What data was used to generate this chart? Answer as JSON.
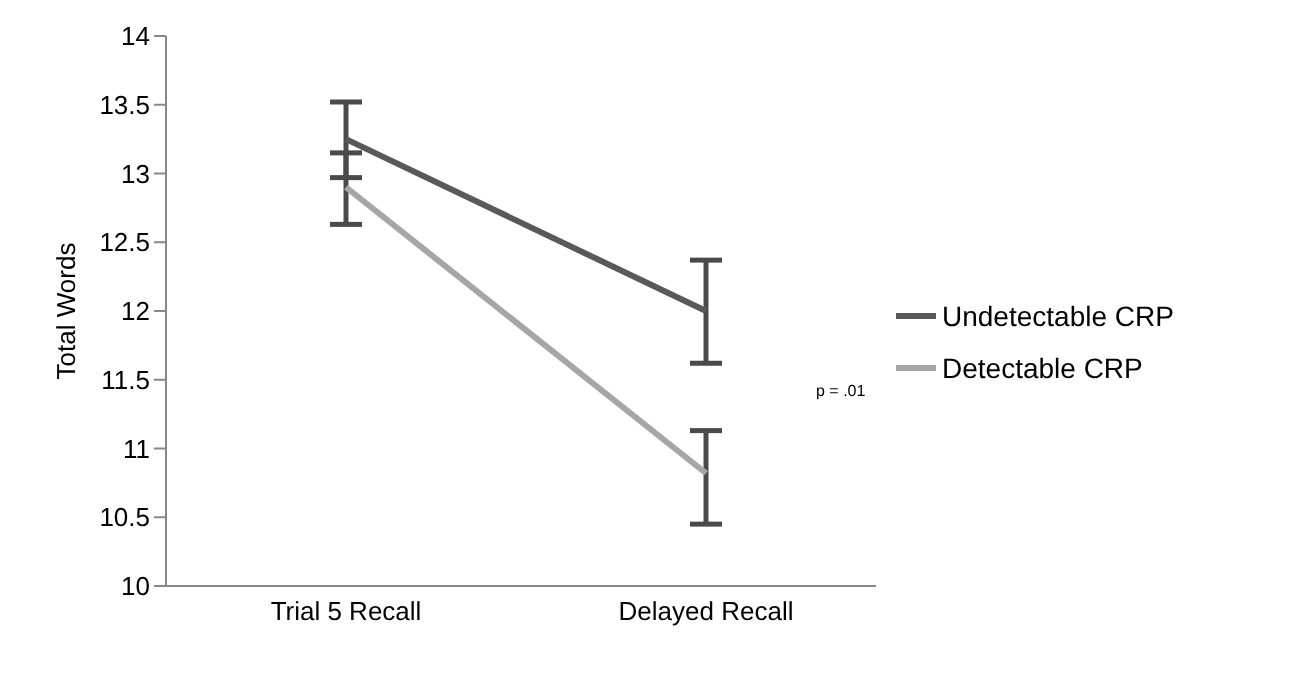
{
  "chart_data": {
    "type": "line",
    "ylabel": "Total Words",
    "categories": [
      "Trial 5 Recall",
      "Delayed Recall"
    ],
    "series": [
      {
        "name": "Undetectable CRP",
        "color": "#595959",
        "values": [
          13.25,
          12.0
        ],
        "errors": [
          [
            12.97,
            13.52
          ],
          [
            11.62,
            12.37
          ]
        ]
      },
      {
        "name": "Detectable CRP",
        "color": "#a6a6a6",
        "values": [
          12.9,
          10.82
        ],
        "errors": [
          [
            12.63,
            13.15
          ],
          [
            10.45,
            11.13
          ]
        ]
      }
    ],
    "ylim": [
      10,
      14
    ],
    "yticks": [
      10,
      10.5,
      11,
      11.5,
      12,
      12.5,
      13,
      13.5,
      14
    ],
    "grid": false,
    "legend": "right",
    "marker": "none",
    "line_style": "solid",
    "annotations": [
      "p = .01"
    ]
  }
}
